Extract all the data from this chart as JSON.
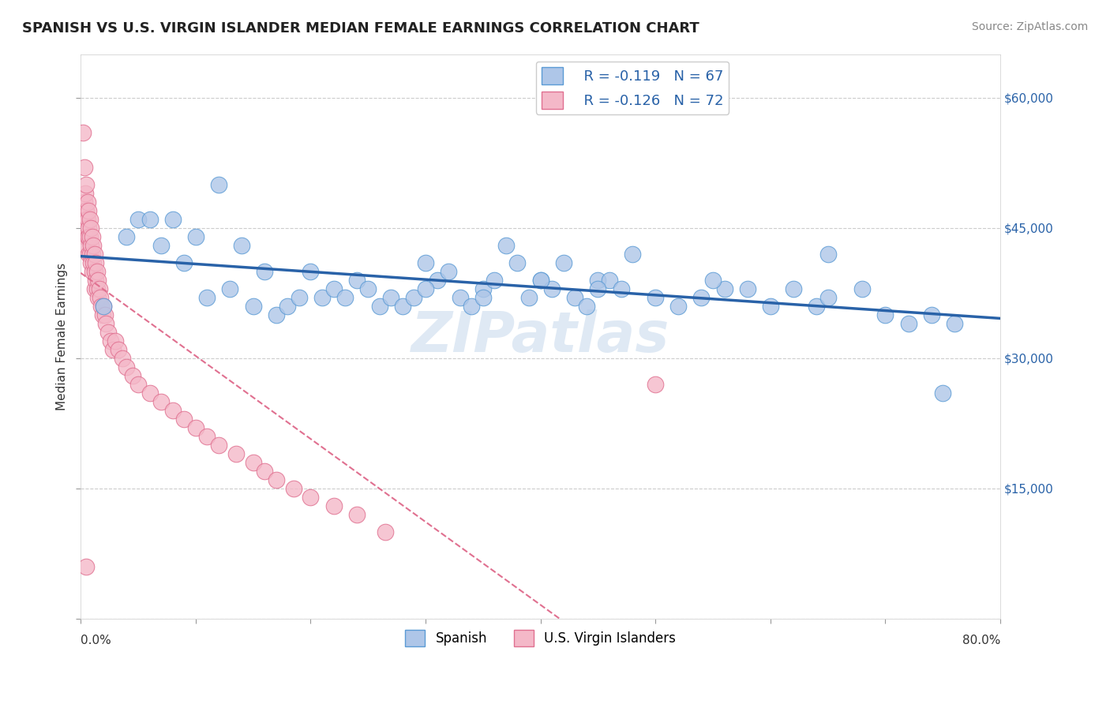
{
  "title": "SPANISH VS U.S. VIRGIN ISLANDER MEDIAN FEMALE EARNINGS CORRELATION CHART",
  "source": "Source: ZipAtlas.com",
  "ylabel_label": "Median Female Earnings",
  "watermark": "ZIPatlas",
  "xlim": [
    0.0,
    0.8
  ],
  "ylim": [
    0,
    65000
  ],
  "xticks": [
    0.0,
    0.1,
    0.2,
    0.3,
    0.4,
    0.5,
    0.6,
    0.7,
    0.8
  ],
  "yticks": [
    0,
    15000,
    30000,
    45000,
    60000
  ],
  "right_ytick_labels": [
    "",
    "$15,000",
    "$30,000",
    "$45,000",
    "$60,000"
  ],
  "spanish_color": "#aec6e8",
  "virgin_islander_color": "#f4b8c8",
  "spanish_edge_color": "#5b9bd5",
  "virgin_islander_edge_color": "#e07090",
  "trend_spanish_color": "#2962a8",
  "trend_vi_color": "#e07090",
  "legend_R_spanish": "R = -0.119",
  "legend_N_spanish": "N = 67",
  "legend_R_vi": "R = -0.126",
  "legend_N_vi": "N = 72",
  "background_color": "#ffffff",
  "grid_color": "#cccccc",
  "title_fontsize": 13,
  "axis_label_fontsize": 11,
  "tick_fontsize": 11,
  "spanish_x": [
    0.02,
    0.05,
    0.12,
    0.04,
    0.06,
    0.07,
    0.08,
    0.09,
    0.1,
    0.11,
    0.13,
    0.14,
    0.15,
    0.16,
    0.17,
    0.18,
    0.19,
    0.2,
    0.21,
    0.22,
    0.23,
    0.24,
    0.25,
    0.26,
    0.27,
    0.28,
    0.29,
    0.3,
    0.31,
    0.32,
    0.33,
    0.34,
    0.35,
    0.36,
    0.37,
    0.38,
    0.39,
    0.4,
    0.41,
    0.42,
    0.43,
    0.44,
    0.45,
    0.46,
    0.47,
    0.48,
    0.5,
    0.52,
    0.54,
    0.56,
    0.58,
    0.6,
    0.62,
    0.64,
    0.65,
    0.68,
    0.7,
    0.72,
    0.74,
    0.76,
    0.3,
    0.35,
    0.4,
    0.45,
    0.55,
    0.65,
    0.75
  ],
  "spanish_y": [
    36000,
    46000,
    50000,
    44000,
    46000,
    43000,
    46000,
    41000,
    44000,
    37000,
    38000,
    43000,
    36000,
    40000,
    35000,
    36000,
    37000,
    40000,
    37000,
    38000,
    37000,
    39000,
    38000,
    36000,
    37000,
    36000,
    37000,
    41000,
    39000,
    40000,
    37000,
    36000,
    38000,
    39000,
    43000,
    41000,
    37000,
    39000,
    38000,
    41000,
    37000,
    36000,
    39000,
    39000,
    38000,
    42000,
    37000,
    36000,
    37000,
    38000,
    38000,
    36000,
    38000,
    36000,
    37000,
    38000,
    35000,
    34000,
    35000,
    34000,
    38000,
    37000,
    39000,
    38000,
    39000,
    42000,
    26000
  ],
  "vi_x": [
    0.002,
    0.003,
    0.003,
    0.004,
    0.004,
    0.004,
    0.005,
    0.005,
    0.005,
    0.005,
    0.005,
    0.006,
    0.006,
    0.006,
    0.007,
    0.007,
    0.007,
    0.007,
    0.008,
    0.008,
    0.008,
    0.009,
    0.009,
    0.009,
    0.01,
    0.01,
    0.01,
    0.011,
    0.011,
    0.012,
    0.012,
    0.012,
    0.013,
    0.013,
    0.014,
    0.014,
    0.015,
    0.015,
    0.016,
    0.017,
    0.018,
    0.019,
    0.02,
    0.021,
    0.022,
    0.024,
    0.026,
    0.028,
    0.03,
    0.033,
    0.036,
    0.04,
    0.045,
    0.05,
    0.06,
    0.07,
    0.08,
    0.09,
    0.1,
    0.11,
    0.12,
    0.135,
    0.15,
    0.16,
    0.17,
    0.185,
    0.2,
    0.22,
    0.24,
    0.265,
    0.5,
    0.005
  ],
  "vi_y": [
    56000,
    52000,
    48000,
    49000,
    47000,
    44000,
    50000,
    47000,
    46000,
    45000,
    43000,
    48000,
    46000,
    44000,
    47000,
    45000,
    44000,
    42000,
    46000,
    44000,
    42000,
    45000,
    43000,
    41000,
    44000,
    42000,
    40000,
    43000,
    41000,
    42000,
    40000,
    38000,
    41000,
    39000,
    40000,
    38000,
    39000,
    37000,
    38000,
    37000,
    36000,
    35000,
    36000,
    35000,
    34000,
    33000,
    32000,
    31000,
    32000,
    31000,
    30000,
    29000,
    28000,
    27000,
    26000,
    25000,
    24000,
    23000,
    22000,
    21000,
    20000,
    19000,
    18000,
    17000,
    16000,
    15000,
    14000,
    13000,
    12000,
    10000,
    27000,
    6000
  ]
}
